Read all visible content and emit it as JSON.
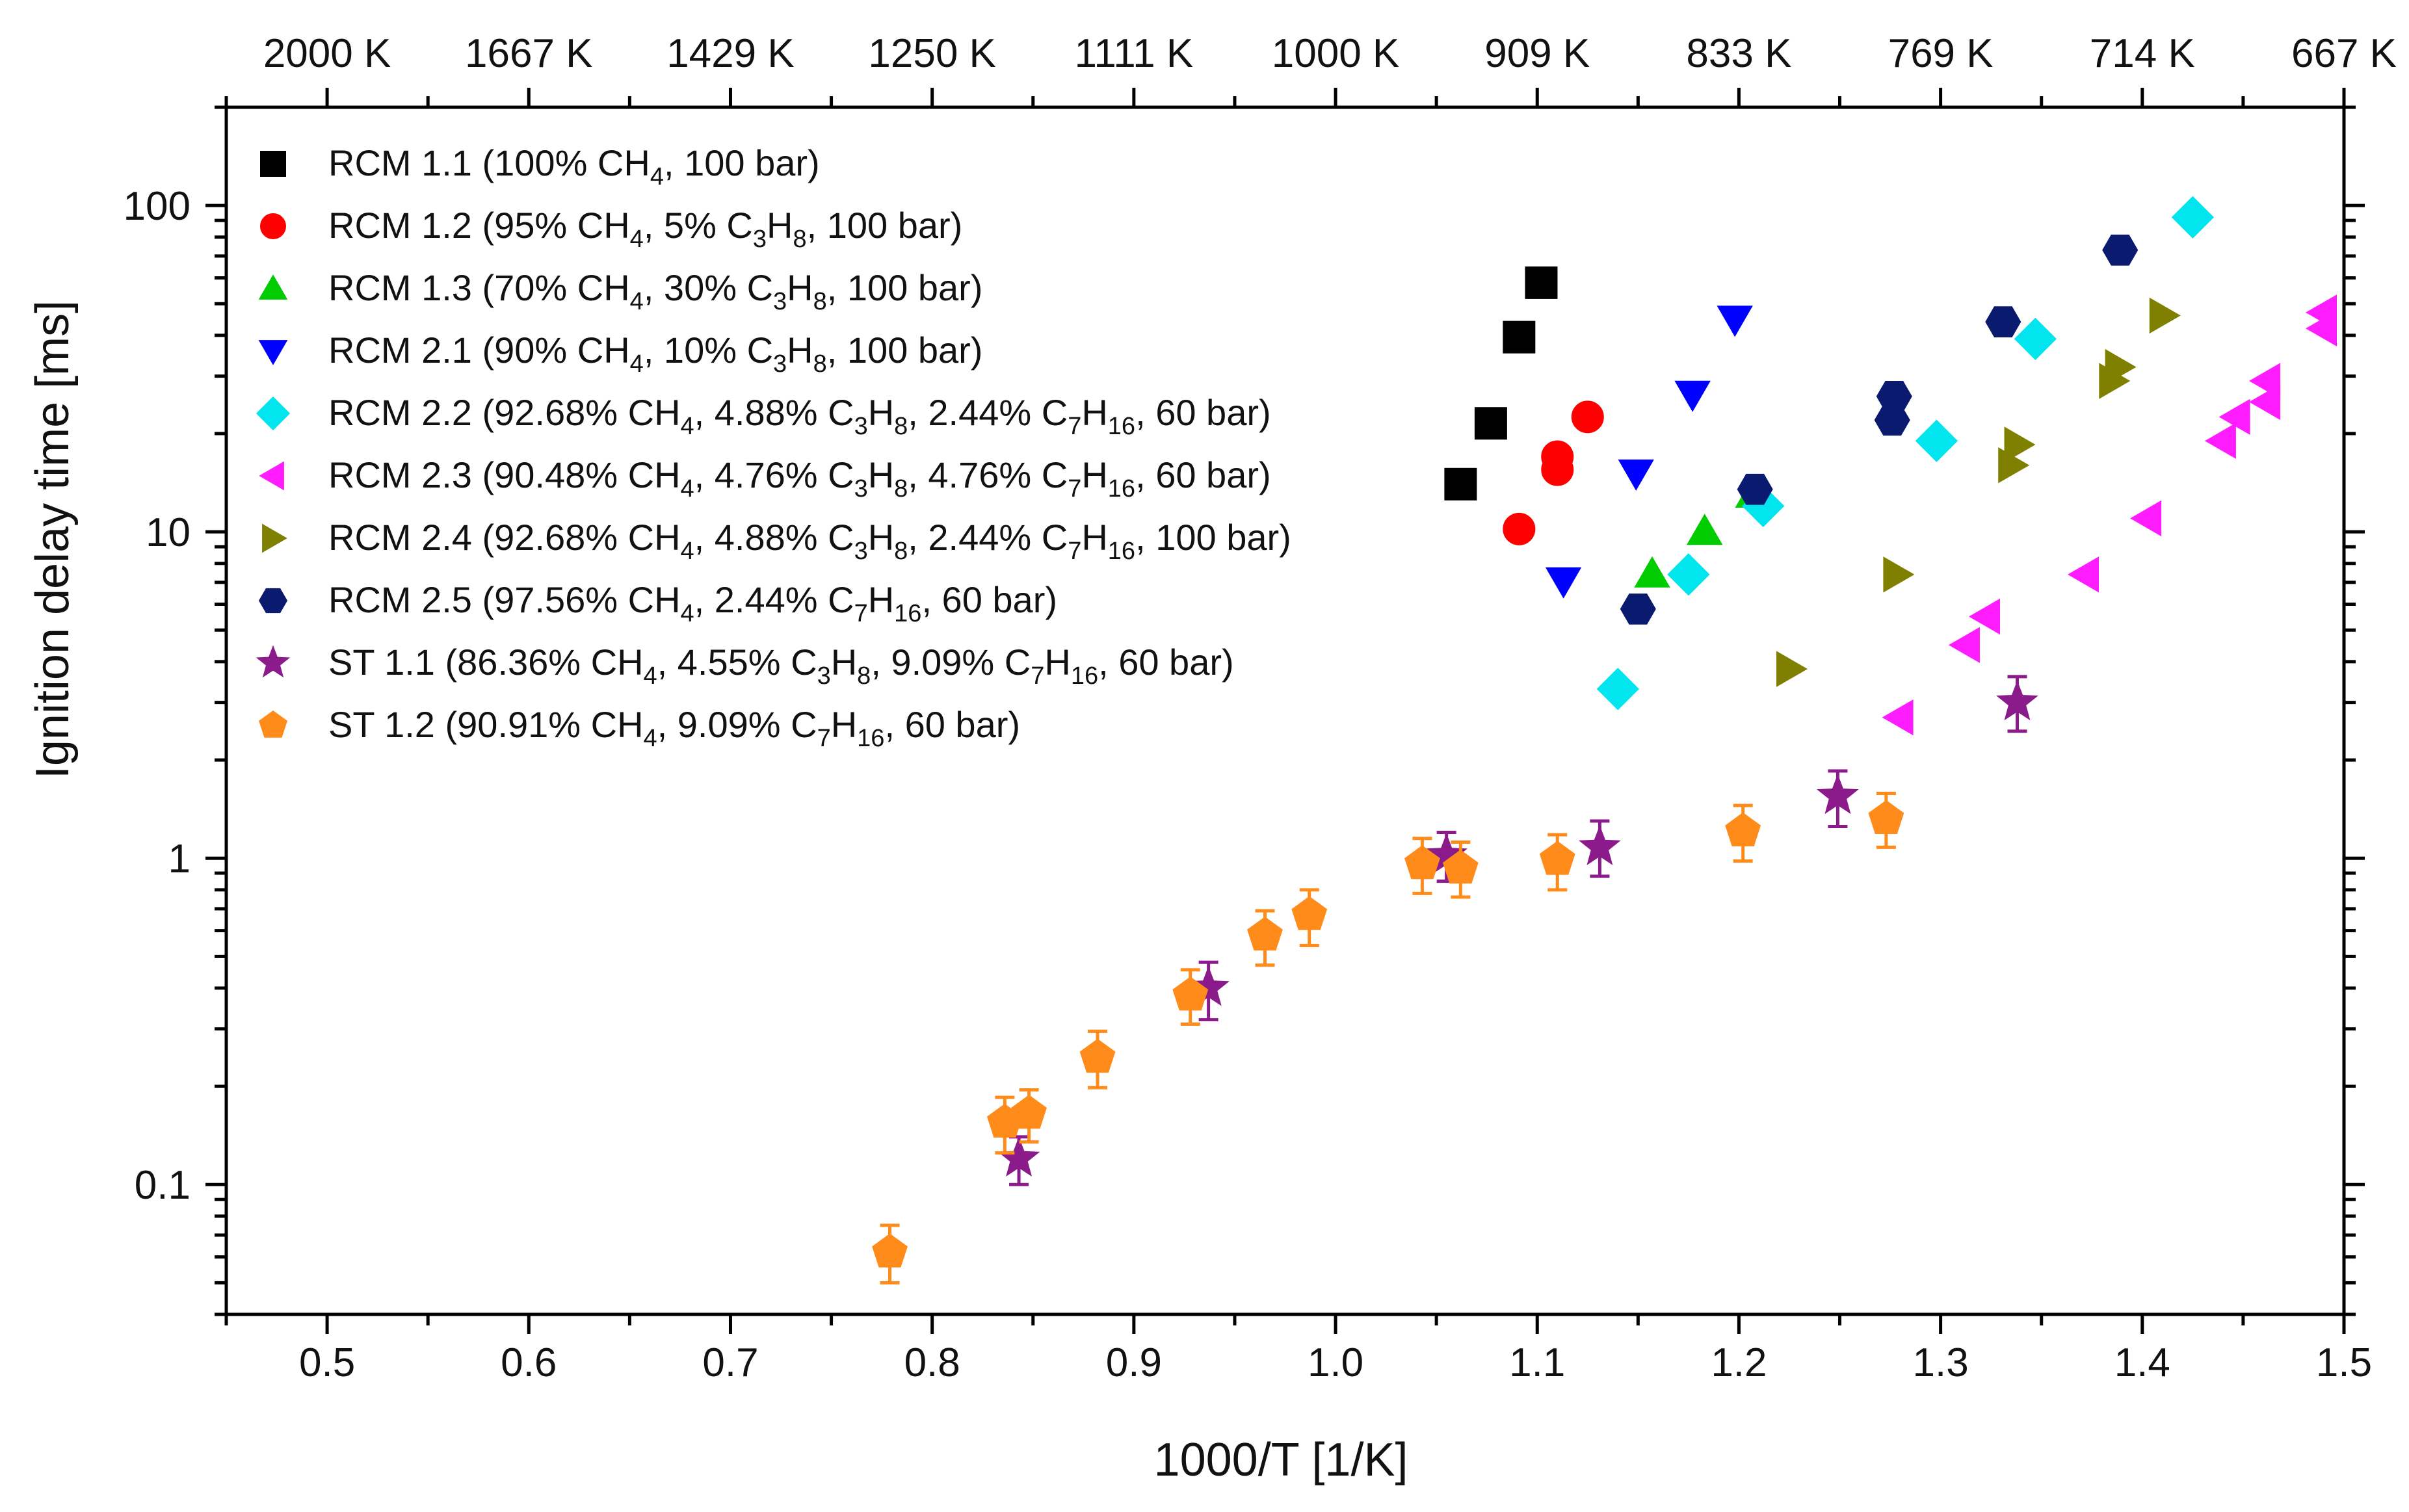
{
  "chart_data": {
    "type": "scatter",
    "xlabel": "1000/T [1/K]",
    "ylabel": "Ignition delay time [ms]",
    "xlim": [
      0.45,
      1.5
    ],
    "ylim": [
      0.04,
      200
    ],
    "yscale": "log",
    "x_ticks": [
      "0.5",
      "0.6",
      "0.7",
      "0.8",
      "0.9",
      "1.0",
      "1.1",
      "1.2",
      "1.3",
      "1.4",
      "1.5"
    ],
    "y_ticks": [
      "0.1",
      "1",
      "10",
      "100"
    ],
    "top_ticks": [
      "2000 K",
      "1667 K",
      "1429 K",
      "1250 K",
      "1111 K",
      "1000 K",
      "909 K",
      "833 K",
      "769 K",
      "714 K",
      "667 K"
    ],
    "legend_position": "top-left",
    "series": [
      {
        "legend": [
          "RCM 1.1 (100% CH",
          "4",
          ", 100 bar)"
        ],
        "marker": "square",
        "color": "#000000",
        "points": [
          [
            1.062,
            14
          ],
          [
            1.077,
            21.5
          ],
          [
            1.091,
            39.5
          ],
          [
            1.102,
            58
          ]
        ]
      },
      {
        "legend": [
          "RCM 1.2 (95% CH",
          "4",
          ", 5% C",
          "3",
          "H",
          "8",
          ", 100 bar)"
        ],
        "marker": "circle",
        "color": "#ff0000",
        "points": [
          [
            1.091,
            10.2
          ],
          [
            1.11,
            15.5
          ],
          [
            1.11,
            17
          ],
          [
            1.125,
            22.5
          ]
        ]
      },
      {
        "legend": [
          "RCM 1.3 (70% CH",
          "4",
          ", 30% C",
          "3",
          "H",
          "8",
          ", 100 bar)"
        ],
        "marker": "triangle-up",
        "color": "#00cc00",
        "points": [
          [
            1.157,
            7.4
          ],
          [
            1.183,
            10
          ],
          [
            1.207,
            13
          ]
        ]
      },
      {
        "legend": [
          "RCM 2.1 (90% CH",
          "4",
          ", 10% C",
          "3",
          "H",
          "8",
          ", 100 bar)"
        ],
        "marker": "triangle-down",
        "color": "#0000ff",
        "points": [
          [
            1.113,
            7.1
          ],
          [
            1.149,
            15.2
          ],
          [
            1.177,
            26.5
          ],
          [
            1.198,
            45
          ]
        ]
      },
      {
        "legend": [
          "RCM 2.2 (92.68% CH",
          "4",
          ", 4.88% C",
          "3",
          "H",
          "8",
          ", 2.44% C",
          "7",
          "H",
          "16",
          ", 60 bar)"
        ],
        "marker": "diamond",
        "color": "#00e5ee",
        "points": [
          [
            1.14,
            3.3
          ],
          [
            1.175,
            7.4
          ],
          [
            1.212,
            12
          ],
          [
            1.298,
            19
          ],
          [
            1.347,
            39
          ],
          [
            1.425,
            92
          ]
        ]
      },
      {
        "legend": [
          "RCM 2.3 (90.48% CH",
          "4",
          ", 4.76% C",
          "3",
          "H",
          "8",
          ", 4.76% C",
          "7",
          "H",
          "16",
          ", 60 bar)"
        ],
        "marker": "triangle-left",
        "color": "#ff1cff",
        "points": [
          [
            1.28,
            2.7
          ],
          [
            1.313,
            4.5
          ],
          [
            1.323,
            5.5
          ],
          [
            1.372,
            7.4
          ],
          [
            1.403,
            11
          ],
          [
            1.44,
            19
          ],
          [
            1.447,
            22.5
          ],
          [
            1.462,
            25
          ],
          [
            1.462,
            29
          ],
          [
            1.49,
            42
          ],
          [
            1.49,
            47
          ]
        ]
      },
      {
        "legend": [
          "RCM 2.4 (92.68% CH",
          "4",
          ", 4.88% C",
          "3",
          "H",
          "8",
          ", 2.44% C",
          "7",
          "H",
          "16",
          ", 100 bar)"
        ],
        "marker": "triangle-right",
        "color": "#808000",
        "points": [
          [
            1.225,
            3.8
          ],
          [
            1.278,
            7.4
          ],
          [
            1.335,
            16
          ],
          [
            1.338,
            18.5
          ],
          [
            1.385,
            29
          ],
          [
            1.388,
            32
          ],
          [
            1.41,
            46
          ]
        ]
      },
      {
        "legend": [
          "RCM 2.5 (97.56% CH",
          "4",
          ", 2.44% C",
          "7",
          "H",
          "16",
          ", 60 bar)"
        ],
        "marker": "hexagon",
        "color": "#0a1a6e",
        "points": [
          [
            1.15,
            5.8
          ],
          [
            1.208,
            13.5
          ],
          [
            1.276,
            22
          ],
          [
            1.277,
            26
          ],
          [
            1.331,
            44
          ],
          [
            1.389,
            73
          ]
        ]
      },
      {
        "legend": [
          "ST 1.1 (86.36% CH",
          "4",
          ", 4.55% C",
          "3",
          "H",
          "8",
          ", 9.09% C",
          "7",
          "H",
          "16",
          ", 60 bar)"
        ],
        "marker": "star",
        "color": "#8b1a8b",
        "points": [
          [
            0.843,
            0.12
          ],
          [
            0.937,
            0.4
          ],
          [
            1.055,
            1.02
          ],
          [
            1.131,
            1.08
          ],
          [
            1.249,
            1.55
          ],
          [
            1.338,
            3.0
          ]
        ],
        "errors": [
          [
            0.1,
            0.14
          ],
          [
            0.32,
            0.48
          ],
          [
            0.85,
            1.2
          ],
          [
            0.88,
            1.3
          ],
          [
            1.25,
            1.85
          ],
          [
            2.45,
            3.6
          ]
        ]
      },
      {
        "legend": [
          "ST 1.2 (90.91% CH",
          "4",
          ", 9.09% C",
          "7",
          "H",
          "16",
          ", 60 bar)"
        ],
        "marker": "pentagon",
        "color": "#ff8c1a",
        "points": [
          [
            0.779,
            0.062
          ],
          [
            0.836,
            0.155
          ],
          [
            0.848,
            0.165
          ],
          [
            0.882,
            0.245
          ],
          [
            0.928,
            0.38
          ],
          [
            0.965,
            0.58
          ],
          [
            0.987,
            0.67
          ],
          [
            1.043,
            0.96
          ],
          [
            1.062,
            0.93
          ],
          [
            1.11,
            0.99
          ],
          [
            1.202,
            1.21
          ],
          [
            1.273,
            1.32
          ]
        ],
        "errors": [
          [
            0.05,
            0.075
          ],
          [
            0.125,
            0.185
          ],
          [
            0.135,
            0.195
          ],
          [
            0.198,
            0.295
          ],
          [
            0.31,
            0.455
          ],
          [
            0.47,
            0.69
          ],
          [
            0.54,
            0.8
          ],
          [
            0.78,
            1.15
          ],
          [
            0.76,
            1.12
          ],
          [
            0.8,
            1.18
          ],
          [
            0.98,
            1.45
          ],
          [
            1.08,
            1.58
          ]
        ]
      }
    ]
  }
}
